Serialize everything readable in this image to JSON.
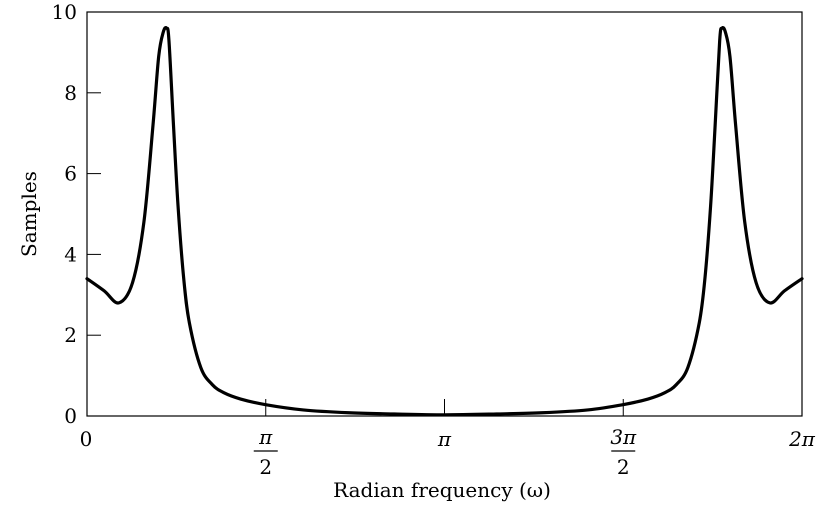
{
  "chart_data": {
    "type": "line",
    "xlabel": "Radian frequency (ω)",
    "ylabel": "Samples",
    "xlim": [
      0,
      6.2832
    ],
    "ylim": [
      0,
      10
    ],
    "grid": false,
    "x_ticks": [
      {
        "value": 0,
        "label": "0"
      },
      {
        "value": 1.5708,
        "label": "π/2",
        "numerator": "π",
        "denominator": "2"
      },
      {
        "value": 3.1416,
        "label": "π"
      },
      {
        "value": 4.7124,
        "label": "3π/2",
        "numerator": "3π",
        "denominator": "2"
      },
      {
        "value": 6.2832,
        "label": "2π"
      }
    ],
    "y_ticks": [
      {
        "value": 0,
        "label": "0"
      },
      {
        "value": 2,
        "label": "2"
      },
      {
        "value": 4,
        "label": "4"
      },
      {
        "value": 6,
        "label": "6"
      },
      {
        "value": 8,
        "label": "8"
      },
      {
        "value": 10,
        "label": "10"
      }
    ],
    "series": [
      {
        "color": "#000000",
        "x": [
          0,
          0.15,
          0.28,
          0.4,
          0.5,
          0.58,
          0.63,
          0.67,
          0.7,
          0.72,
          0.76,
          0.8,
          0.85,
          0.9,
          1.0,
          1.1,
          1.2,
          1.35,
          1.57,
          1.9,
          2.3,
          2.7,
          3.1416,
          3.6,
          4.0,
          4.4,
          4.71,
          4.93,
          5.08,
          5.18,
          5.28,
          5.38,
          5.43,
          5.48,
          5.52,
          5.56,
          5.58,
          5.61,
          5.65,
          5.7,
          5.78,
          5.88,
          6.0,
          6.13,
          6.2832
        ],
        "y": [
          3.4,
          3.1,
          2.8,
          3.3,
          4.8,
          7.2,
          8.9,
          9.5,
          9.6,
          9.3,
          7.2,
          5.2,
          3.4,
          2.3,
          1.2,
          0.78,
          0.58,
          0.42,
          0.28,
          0.15,
          0.08,
          0.05,
          0.03,
          0.05,
          0.08,
          0.15,
          0.28,
          0.42,
          0.58,
          0.78,
          1.2,
          2.3,
          3.4,
          5.2,
          7.2,
          9.3,
          9.6,
          9.5,
          8.9,
          7.2,
          4.8,
          3.3,
          2.8,
          3.1,
          3.4
        ]
      }
    ]
  }
}
